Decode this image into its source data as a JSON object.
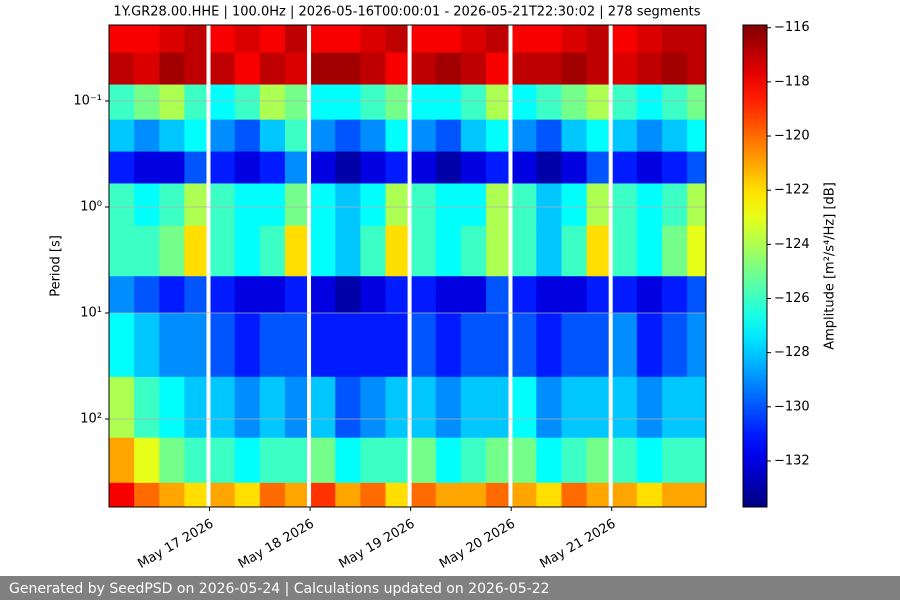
{
  "chart_data": {
    "type": "heatmap",
    "title": "1Y.GR28.00.HHE | 100.0Hz | 2026-05-16T00:00:01 - 2026-05-21T22:30:02 | 278 segments",
    "ylabel": "Period [s]",
    "colorbar_label": "Amplitude [m²/s⁴/Hz] [dB]",
    "colormap": "jet",
    "y_log": true,
    "y_inverted": true,
    "grid": true,
    "xlim": [
      "2026-05-16T00:00:01",
      "2026-05-21T22:30:02"
    ],
    "xticks": [
      {
        "value": "2026-05-17T00:00",
        "label": "May 17 2026"
      },
      {
        "value": "2026-05-18T00:00",
        "label": "May 18 2026"
      },
      {
        "value": "2026-05-19T00:00",
        "label": "May 19 2026"
      },
      {
        "value": "2026-05-20T00:00",
        "label": "May 20 2026"
      },
      {
        "value": "2026-05-21T00:00",
        "label": "May 21 2026"
      }
    ],
    "ylim": [
      0.0192,
      676
    ],
    "yticks": [
      {
        "value": 0.1,
        "label": "10⁻¹"
      },
      {
        "value": 1,
        "label": "10⁰"
      },
      {
        "value": 10,
        "label": "10¹"
      },
      {
        "value": 100,
        "label": "10²"
      }
    ],
    "clim": [
      -133.7,
      -115.9
    ],
    "cticks": [
      {
        "value": -116,
        "label": "−116"
      },
      {
        "value": -118,
        "label": "−118"
      },
      {
        "value": -120,
        "label": "−120"
      },
      {
        "value": -122,
        "label": "−122"
      },
      {
        "value": -124,
        "label": "−124"
      },
      {
        "value": -126,
        "label": "−126"
      },
      {
        "value": -128,
        "label": "−128"
      },
      {
        "value": -130,
        "label": "−130"
      },
      {
        "value": -132,
        "label": "−132"
      }
    ],
    "x_bins": [
      "2026-05-16T00:00",
      "2026-05-16T06:00",
      "2026-05-16T12:00",
      "2026-05-16T18:00",
      "2026-05-17T00:00",
      "2026-05-17T06:00",
      "2026-05-17T12:00",
      "2026-05-17T18:00",
      "2026-05-18T00:00",
      "2026-05-18T06:00",
      "2026-05-18T12:00",
      "2026-05-18T18:00",
      "2026-05-19T00:00",
      "2026-05-19T06:00",
      "2026-05-19T12:00",
      "2026-05-19T18:00",
      "2026-05-20T00:00",
      "2026-05-20T06:00",
      "2026-05-20T12:00",
      "2026-05-20T18:00",
      "2026-05-21T00:00",
      "2026-05-21T06:00",
      "2026-05-21T12:00",
      "2026-05-21T18:00",
      "2026-05-22T00:00"
    ],
    "y_bins": [
      0.0192,
      0.035,
      0.07,
      0.15,
      0.3,
      0.6,
      1.5,
      4.5,
      10,
      40,
      150,
      400,
      676
    ],
    "values": [
      [
        -118,
        -118,
        -117.5,
        -117,
        -118,
        -117.5,
        -118,
        -117,
        -118,
        -118,
        -117.5,
        -117,
        -118,
        -118,
        -117.5,
        -117,
        -118,
        -118,
        -117.5,
        -117,
        -118,
        -117.5,
        -117,
        -117
      ],
      [
        -117,
        -117.5,
        -116.5,
        -117,
        -117,
        -118,
        -117,
        -117.5,
        -116.5,
        -116.5,
        -117,
        -118,
        -117,
        -116.5,
        -117,
        -118,
        -117,
        -117,
        -116.5,
        -117,
        -117.5,
        -117,
        -116.5,
        -117
      ],
      [
        -126,
        -125,
        -124,
        -126,
        -127,
        -126,
        -124,
        -125,
        -127,
        -127,
        -126,
        -125,
        -127,
        -127,
        -126,
        -124,
        -127,
        -126,
        -125,
        -124,
        -126,
        -127,
        -126,
        -125
      ],
      [
        -128,
        -129,
        -128,
        -127,
        -129,
        -130,
        -128,
        -126,
        -129,
        -130,
        -129,
        -127,
        -129,
        -130,
        -128,
        -127,
        -129,
        -130,
        -128,
        -127,
        -128,
        -129,
        -128,
        -127
      ],
      [
        -131,
        -132,
        -132,
        -130,
        -131,
        -132,
        -131,
        -129,
        -132,
        -133,
        -132,
        -131,
        -132,
        -133,
        -132,
        -131,
        -132,
        -133,
        -132,
        -130,
        -131,
        -132,
        -131,
        -130
      ],
      [
        -126,
        -127,
        -126,
        -124,
        -126,
        -127,
        -127,
        -125,
        -127,
        -128,
        -127,
        -124,
        -126,
        -127,
        -127,
        -124,
        -126,
        -128,
        -127,
        -124,
        -126,
        -127,
        -126,
        -124
      ],
      [
        -126,
        -126,
        -125,
        -122,
        -126,
        -127,
        -126,
        -122,
        -127,
        -128,
        -126,
        -122,
        -126,
        -127,
        -126,
        -124,
        -126,
        -128,
        -126,
        -122,
        -126,
        -127,
        -125,
        -123
      ],
      [
        -129,
        -130,
        -131,
        -130,
        -131,
        -132,
        -132,
        -131,
        -132,
        -133,
        -132,
        -131,
        -131,
        -132,
        -132,
        -130,
        -131,
        -132,
        -132,
        -131,
        -131,
        -132,
        -131,
        -130
      ],
      [
        -127,
        -128,
        -129,
        -129,
        -130,
        -131,
        -130,
        -130,
        -131,
        -131,
        -131,
        -131,
        -130,
        -131,
        -130,
        -130,
        -130,
        -131,
        -130,
        -130,
        -129,
        -131,
        -130,
        -129
      ],
      [
        -124,
        -126,
        -127,
        -128,
        -128,
        -129,
        -128,
        -129,
        -128,
        -130,
        -129,
        -128,
        -128,
        -129,
        -128,
        -128,
        -127,
        -129,
        -128,
        -128,
        -128,
        -129,
        -128,
        -128
      ],
      [
        -121,
        -123,
        -125,
        -126,
        -126,
        -127,
        -126,
        -126,
        -125,
        -127,
        -126,
        -126,
        -125,
        -127,
        -126,
        -125,
        -125,
        -127,
        -126,
        -125,
        -126,
        -127,
        -126,
        -126
      ],
      [
        -118,
        -120,
        -121,
        -122,
        -121,
        -122,
        -120,
        -121,
        -119,
        -121,
        -120,
        -122,
        -120,
        -121,
        -121,
        -120,
        -121,
        -122,
        -120,
        -121,
        -121,
        -122,
        -121,
        -121
      ]
    ],
    "gaps": [
      "2026-05-16T23:45",
      "2026-05-17T23:45",
      "2026-05-18T23:45",
      "2026-05-19T23:50",
      "2026-05-20T23:45"
    ]
  },
  "footer": "Generated by SeedPSD on 2026-05-24 | Calculations updated on 2026-05-22"
}
